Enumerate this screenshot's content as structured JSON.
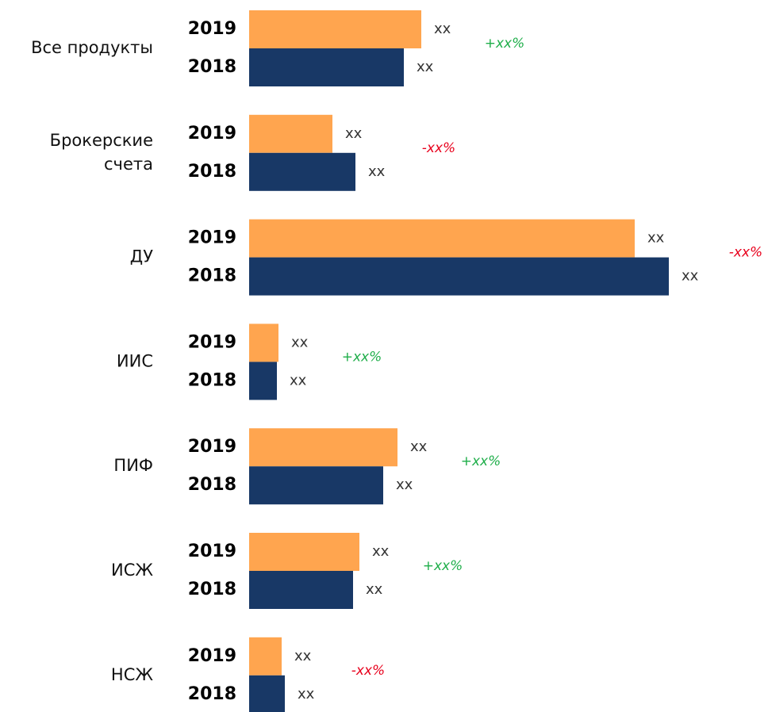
{
  "chart_data": {
    "type": "barh",
    "categories": [
      "Все продукты",
      "Брокерские\nсчета",
      "ДУ",
      "ИИС",
      "ПИФ",
      "ИСЖ",
      "НСЖ"
    ],
    "series": [
      {
        "name": "2019",
        "color": "#ffa54f",
        "values": [
          217,
          105,
          486,
          37,
          187,
          139,
          41
        ],
        "value_labels": [
          "xx",
          "xx",
          "xx",
          "xx",
          "xx",
          "xx",
          "xx"
        ]
      },
      {
        "name": "2018",
        "color": "#183866",
        "values": [
          195,
          134,
          529,
          35,
          169,
          131,
          45
        ],
        "value_labels": [
          "xx",
          "xx",
          "xx",
          "xx",
          "xx",
          "xx",
          "xx"
        ]
      }
    ],
    "changes": [
      {
        "label": "+xx%",
        "color": "#1fae4a"
      },
      {
        "label": "-xx%",
        "color": "#e8001c"
      },
      {
        "label": "-xx%",
        "color": "#e8001c"
      },
      {
        "label": "+xx%",
        "color": "#1fae4a"
      },
      {
        "label": "+xx%",
        "color": "#1fae4a"
      },
      {
        "label": "+xx%",
        "color": "#1fae4a"
      },
      {
        "label": "-xx%",
        "color": "#e8001c"
      }
    ],
    "xlim": [
      0,
      530
    ]
  }
}
